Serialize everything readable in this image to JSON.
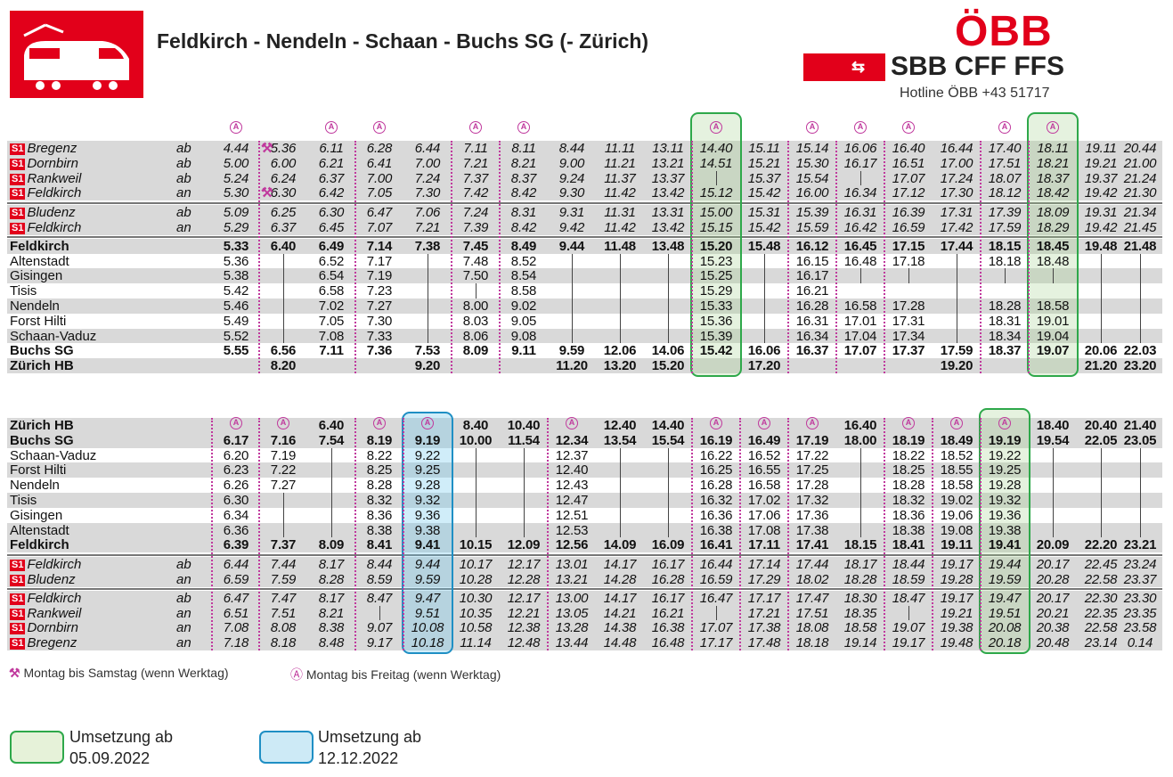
{
  "header": {
    "title": "Feldkirch - Nendeln - Schaan - Buchs SG (- Zürich)",
    "logo_text": "ÖBB",
    "sbb_text": "SBB CFF FFS",
    "hotline": "Hotline ÖBB +43 51717"
  },
  "colors": {
    "oebb_red": "#e2001a",
    "marker_pink": "#c0399d",
    "green": "#2ea84a",
    "blue": "#1f8fc4"
  },
  "icons": {
    "train": "train-icon",
    "saturday": "hammers-icon",
    "weekday": "circled-a-icon"
  },
  "table1": {
    "stations": [
      {
        "name": "Bregenz",
        "dir": "ab",
        "s1": "S1",
        "style": "it",
        "times": [
          "4.44",
          "5.36",
          "6.11",
          "6.28",
          "6.44",
          "7.11",
          "8.11",
          "8.44",
          "11.11",
          "13.11",
          "14.40",
          "15.11",
          "15.14",
          "16.06",
          "16.40",
          "16.44",
          "17.40",
          "18.11",
          "19.11",
          "20.44"
        ]
      },
      {
        "name": "Dornbirn",
        "dir": "ab",
        "s1": "S1",
        "style": "it",
        "times": [
          "5.00",
          "6.00",
          "6.21",
          "6.41",
          "7.00",
          "7.21",
          "8.21",
          "9.00",
          "11.21",
          "13.21",
          "14.51",
          "15.21",
          "15.30",
          "16.17",
          "16.51",
          "17.00",
          "17.51",
          "18.21",
          "19.21",
          "21.00"
        ]
      },
      {
        "name": "Rankweil",
        "dir": "ab",
        "s1": "S1",
        "style": "it",
        "times": [
          "5.24",
          "6.24",
          "6.37",
          "7.00",
          "7.24",
          "7.37",
          "8.37",
          "9.24",
          "11.37",
          "13.37",
          "|",
          "15.37",
          "15.54",
          "|",
          "17.07",
          "17.24",
          "18.07",
          "18.37",
          "19.37",
          "21.24"
        ]
      },
      {
        "name": "Feldkirch",
        "dir": "an",
        "s1": "S1",
        "style": "it",
        "times": [
          "5.30",
          "6.30",
          "6.42",
          "7.05",
          "7.30",
          "7.42",
          "8.42",
          "9.30",
          "11.42",
          "13.42",
          "15.12",
          "15.42",
          "16.00",
          "16.34",
          "17.12",
          "17.30",
          "18.12",
          "18.42",
          "19.42",
          "21.30"
        ]
      },
      {
        "name": "Bludenz",
        "dir": "ab",
        "s1": "S1",
        "style": "it",
        "times": [
          "5.09",
          "6.25",
          "6.30",
          "6.47",
          "7.06",
          "7.24",
          "8.31",
          "9.31",
          "11.31",
          "13.31",
          "15.00",
          "15.31",
          "15.39",
          "16.31",
          "16.39",
          "17.31",
          "17.39",
          "18.09",
          "19.31",
          "21.34"
        ]
      },
      {
        "name": "Feldkirch",
        "dir": "an",
        "s1": "S1",
        "style": "it",
        "times": [
          "5.29",
          "6.37",
          "6.45",
          "7.07",
          "7.21",
          "7.39",
          "8.42",
          "9.42",
          "11.42",
          "13.42",
          "15.15",
          "15.42",
          "15.59",
          "16.42",
          "16.59",
          "17.42",
          "17.59",
          "18.29",
          "19.42",
          "21.45"
        ]
      },
      {
        "name": "Feldkirch",
        "dir": "",
        "s1": "",
        "style": "b",
        "times": [
          "5.33",
          "6.40",
          "6.49",
          "7.14",
          "7.38",
          "7.45",
          "8.49",
          "9.44",
          "11.48",
          "13.48",
          "15.20",
          "15.48",
          "16.12",
          "16.45",
          "17.15",
          "17.44",
          "18.15",
          "18.45",
          "19.48",
          "21.48"
        ]
      },
      {
        "name": "Altenstadt",
        "dir": "",
        "s1": "",
        "style": "",
        "times": [
          "5.36",
          "|",
          "6.52",
          "7.17",
          "|",
          "7.48",
          "8.52",
          "|",
          "|",
          "|",
          "15.23",
          "|",
          "16.15",
          "16.48",
          "17.18",
          "|",
          "18.18",
          "18.48",
          "|",
          "|"
        ]
      },
      {
        "name": "Gisingen",
        "dir": "",
        "s1": "",
        "style": "",
        "times": [
          "5.38",
          "|",
          "6.54",
          "7.19",
          "|",
          "7.50",
          "8.54",
          "|",
          "|",
          "|",
          "15.25",
          "|",
          "16.17",
          "|",
          "|",
          "|",
          "|",
          "|",
          "|",
          "|"
        ]
      },
      {
        "name": "Tisis",
        "dir": "",
        "s1": "",
        "style": "",
        "times": [
          "5.42",
          "|",
          "6.58",
          "7.23",
          "|",
          "|",
          "8.58",
          "|",
          "|",
          "|",
          "15.29",
          "|",
          "16.21",
          "",
          "",
          "|",
          "",
          "",
          "|",
          "|"
        ]
      },
      {
        "name": "Nendeln",
        "dir": "",
        "s1": "",
        "style": "",
        "times": [
          "5.46",
          "|",
          "7.02",
          "7.27",
          "|",
          "8.00",
          "9.02",
          "|",
          "|",
          "|",
          "15.33",
          "|",
          "16.28",
          "16.58",
          "17.28",
          "|",
          "18.28",
          "18.58",
          "|",
          "|"
        ]
      },
      {
        "name": "Forst Hilti",
        "dir": "",
        "s1": "",
        "style": "",
        "times": [
          "5.49",
          "|",
          "7.05",
          "7.30",
          "|",
          "8.03",
          "9.05",
          "|",
          "|",
          "|",
          "15.36",
          "|",
          "16.31",
          "17.01",
          "17.31",
          "|",
          "18.31",
          "19.01",
          "|",
          "|"
        ]
      },
      {
        "name": "Schaan-Vaduz",
        "dir": "",
        "s1": "",
        "style": "",
        "times": [
          "5.52",
          "|",
          "7.08",
          "7.33",
          "|",
          "8.06",
          "9.08",
          "|",
          "|",
          "|",
          "15.39",
          "|",
          "16.34",
          "17.04",
          "17.34",
          "|",
          "18.34",
          "19.04",
          "|",
          "|"
        ]
      },
      {
        "name": "Buchs SG",
        "dir": "",
        "s1": "",
        "style": "b",
        "times": [
          "5.55",
          "6.56",
          "7.11",
          "7.36",
          "7.53",
          "8.09",
          "9.11",
          "9.59",
          "12.06",
          "14.06",
          "15.42",
          "16.06",
          "16.37",
          "17.07",
          "17.37",
          "17.59",
          "18.37",
          "19.07",
          "20.06",
          "22.03"
        ]
      },
      {
        "name": "Zürich HB",
        "dir": "",
        "s1": "",
        "style": "b",
        "times": [
          "",
          "8.20",
          "",
          "",
          "9.20",
          "",
          "",
          "11.20",
          "13.20",
          "15.20",
          "",
          "17.20",
          "",
          "",
          "",
          "19.20",
          "",
          "",
          "21.20",
          "23.20"
        ]
      }
    ]
  },
  "table2": {
    "stations": [
      {
        "name": "Zürich HB",
        "dir": "",
        "s1": "",
        "style": "b",
        "times": [
          "",
          "",
          "6.40",
          "",
          "",
          "8.40",
          "10.40",
          "",
          "12.40",
          "14.40",
          "",
          "",
          "",
          "16.40",
          "",
          "",
          "",
          "18.40",
          "20.40",
          "21.40"
        ]
      },
      {
        "name": "Buchs SG",
        "dir": "",
        "s1": "",
        "style": "b",
        "times": [
          "6.17",
          "7.16",
          "7.54",
          "8.19",
          "9.19",
          "10.00",
          "11.54",
          "12.34",
          "13.54",
          "15.54",
          "16.19",
          "16.49",
          "17.19",
          "18.00",
          "18.19",
          "18.49",
          "19.19",
          "19.54",
          "22.05",
          "23.05"
        ]
      },
      {
        "name": "Schaan-Vaduz",
        "dir": "",
        "s1": "",
        "style": "",
        "times": [
          "6.20",
          "7.19",
          "|",
          "8.22",
          "9.22",
          "|",
          "|",
          "12.37",
          "|",
          "|",
          "16.22",
          "16.52",
          "17.22",
          "|",
          "18.22",
          "18.52",
          "19.22",
          "|",
          "|",
          "|"
        ]
      },
      {
        "name": "Forst Hilti",
        "dir": "",
        "s1": "",
        "style": "",
        "times": [
          "6.23",
          "7.22",
          "|",
          "8.25",
          "9.25",
          "|",
          "|",
          "12.40",
          "|",
          "|",
          "16.25",
          "16.55",
          "17.25",
          "|",
          "18.25",
          "18.55",
          "19.25",
          "|",
          "|",
          "|"
        ]
      },
      {
        "name": "Nendeln",
        "dir": "",
        "s1": "",
        "style": "",
        "times": [
          "6.26",
          "7.27",
          "|",
          "8.28",
          "9.28",
          "|",
          "|",
          "12.43",
          "|",
          "|",
          "16.28",
          "16.58",
          "17.28",
          "|",
          "18.28",
          "18.58",
          "19.28",
          "|",
          "|",
          "|"
        ]
      },
      {
        "name": "Tisis",
        "dir": "",
        "s1": "",
        "style": "",
        "times": [
          "6.30",
          "|",
          "|",
          "8.32",
          "9.32",
          "|",
          "|",
          "12.47",
          "|",
          "|",
          "16.32",
          "17.02",
          "17.32",
          "|",
          "18.32",
          "19.02",
          "19.32",
          "|",
          "|",
          "|"
        ]
      },
      {
        "name": "Gisingen",
        "dir": "",
        "s1": "",
        "style": "",
        "times": [
          "6.34",
          "|",
          "|",
          "8.36",
          "9.36",
          "|",
          "|",
          "12.51",
          "|",
          "|",
          "16.36",
          "17.06",
          "17.36",
          "|",
          "18.36",
          "19.06",
          "19.36",
          "|",
          "|",
          "|"
        ]
      },
      {
        "name": "Altenstadt",
        "dir": "",
        "s1": "",
        "style": "",
        "times": [
          "6.36",
          "|",
          "|",
          "8.38",
          "9.38",
          "|",
          "|",
          "12.53",
          "|",
          "|",
          "16.38",
          "17.08",
          "17.38",
          "|",
          "18.38",
          "19.08",
          "19.38",
          "|",
          "|",
          "|"
        ]
      },
      {
        "name": "Feldkirch",
        "dir": "",
        "s1": "",
        "style": "b",
        "times": [
          "6.39",
          "7.37",
          "8.09",
          "8.41",
          "9.41",
          "10.15",
          "12.09",
          "12.56",
          "14.09",
          "16.09",
          "16.41",
          "17.11",
          "17.41",
          "18.15",
          "18.41",
          "19.11",
          "19.41",
          "20.09",
          "22.20",
          "23.21"
        ]
      },
      {
        "name": "Feldkirch",
        "dir": "ab",
        "s1": "S1",
        "style": "it",
        "times": [
          "6.44",
          "7.44",
          "8.17",
          "8.44",
          "9.44",
          "10.17",
          "12.17",
          "13.01",
          "14.17",
          "16.17",
          "16.44",
          "17.14",
          "17.44",
          "18.17",
          "18.44",
          "19.17",
          "19.44",
          "20.17",
          "22.45",
          "23.24"
        ]
      },
      {
        "name": "Bludenz",
        "dir": "an",
        "s1": "S1",
        "style": "it",
        "times": [
          "6.59",
          "7.59",
          "8.28",
          "8.59",
          "9.59",
          "10.28",
          "12.28",
          "13.21",
          "14.28",
          "16.28",
          "16.59",
          "17.29",
          "18.02",
          "18.28",
          "18.59",
          "19.28",
          "19.59",
          "20.28",
          "22.58",
          "23.37"
        ]
      },
      {
        "name": "Feldkirch",
        "dir": "ab",
        "s1": "S1",
        "style": "it",
        "times": [
          "6.47",
          "7.47",
          "8.17",
          "8.47",
          "9.47",
          "10.30",
          "12.17",
          "13.00",
          "14.17",
          "16.17",
          "16.47",
          "17.17",
          "17.47",
          "18.30",
          "18.47",
          "19.17",
          "19.47",
          "20.17",
          "22.30",
          "23.30"
        ]
      },
      {
        "name": "Rankweil",
        "dir": "an",
        "s1": "S1",
        "style": "it",
        "times": [
          "6.51",
          "7.51",
          "8.21",
          "|",
          "9.51",
          "10.35",
          "12.21",
          "13.05",
          "14.21",
          "16.21",
          "|",
          "17.21",
          "17.51",
          "18.35",
          "|",
          "19.21",
          "19.51",
          "20.21",
          "22.35",
          "23.35"
        ]
      },
      {
        "name": "Dornbirn",
        "dir": "an",
        "s1": "S1",
        "style": "it",
        "times": [
          "7.08",
          "8.08",
          "8.38",
          "9.07",
          "10.08",
          "10.58",
          "12.38",
          "13.28",
          "14.38",
          "16.38",
          "17.07",
          "17.38",
          "18.08",
          "18.58",
          "19.07",
          "19.38",
          "20.08",
          "20.38",
          "22.58",
          "23.58"
        ]
      },
      {
        "name": "Bregenz",
        "dir": "an",
        "s1": "S1",
        "style": "it",
        "times": [
          "7.18",
          "8.18",
          "8.48",
          "9.17",
          "10.18",
          "11.14",
          "12.48",
          "13.44",
          "14.48",
          "16.48",
          "17.17",
          "17.48",
          "18.18",
          "19.14",
          "19.17",
          "19.48",
          "20.18",
          "20.48",
          "23.14",
          "0.14"
        ]
      }
    ]
  },
  "footnotes": {
    "saturday": "Montag bis Samstag (wenn Werktag)",
    "weekday": "Montag bis Freitag (wenn Werktag)"
  },
  "legend": {
    "green_line1": "Umsetzung ab",
    "green_line2": "05.09.2022",
    "blue_line1": "Umsetzung ab",
    "blue_line2": "12.12.2022"
  }
}
